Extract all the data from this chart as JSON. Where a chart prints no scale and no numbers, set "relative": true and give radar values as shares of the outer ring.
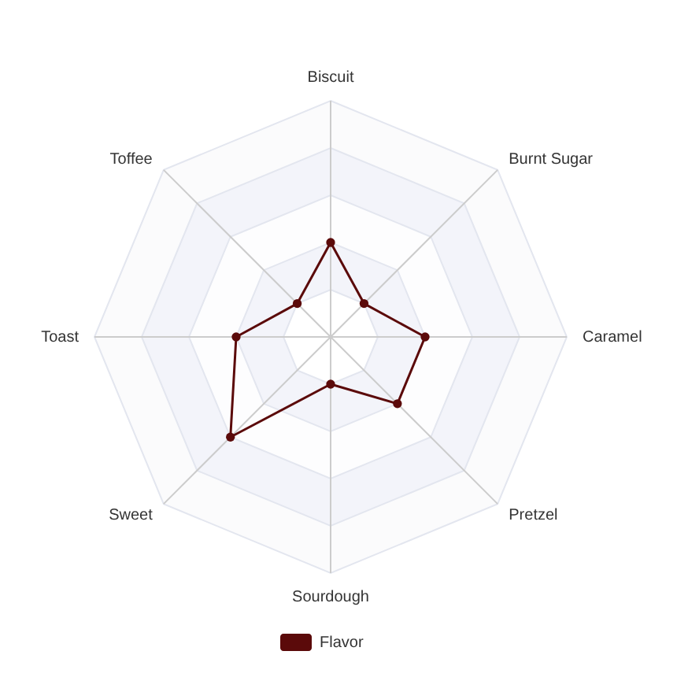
{
  "chart_data": {
    "type": "radar",
    "categories": [
      "Biscuit",
      "Burnt Sugar",
      "Caramel",
      "Pretzel",
      "Sourdough",
      "Sweet",
      "Toast",
      "Toffee"
    ],
    "relative": true,
    "series": [
      {
        "name": "Flavor",
        "color": "#5b0a0a",
        "values": [
          0.4,
          0.2,
          0.4,
          0.4,
          0.2,
          0.6,
          0.4,
          0.2
        ]
      }
    ],
    "grid": true,
    "legend": "bottom",
    "marker": "circle",
    "line_style": "solid"
  }
}
